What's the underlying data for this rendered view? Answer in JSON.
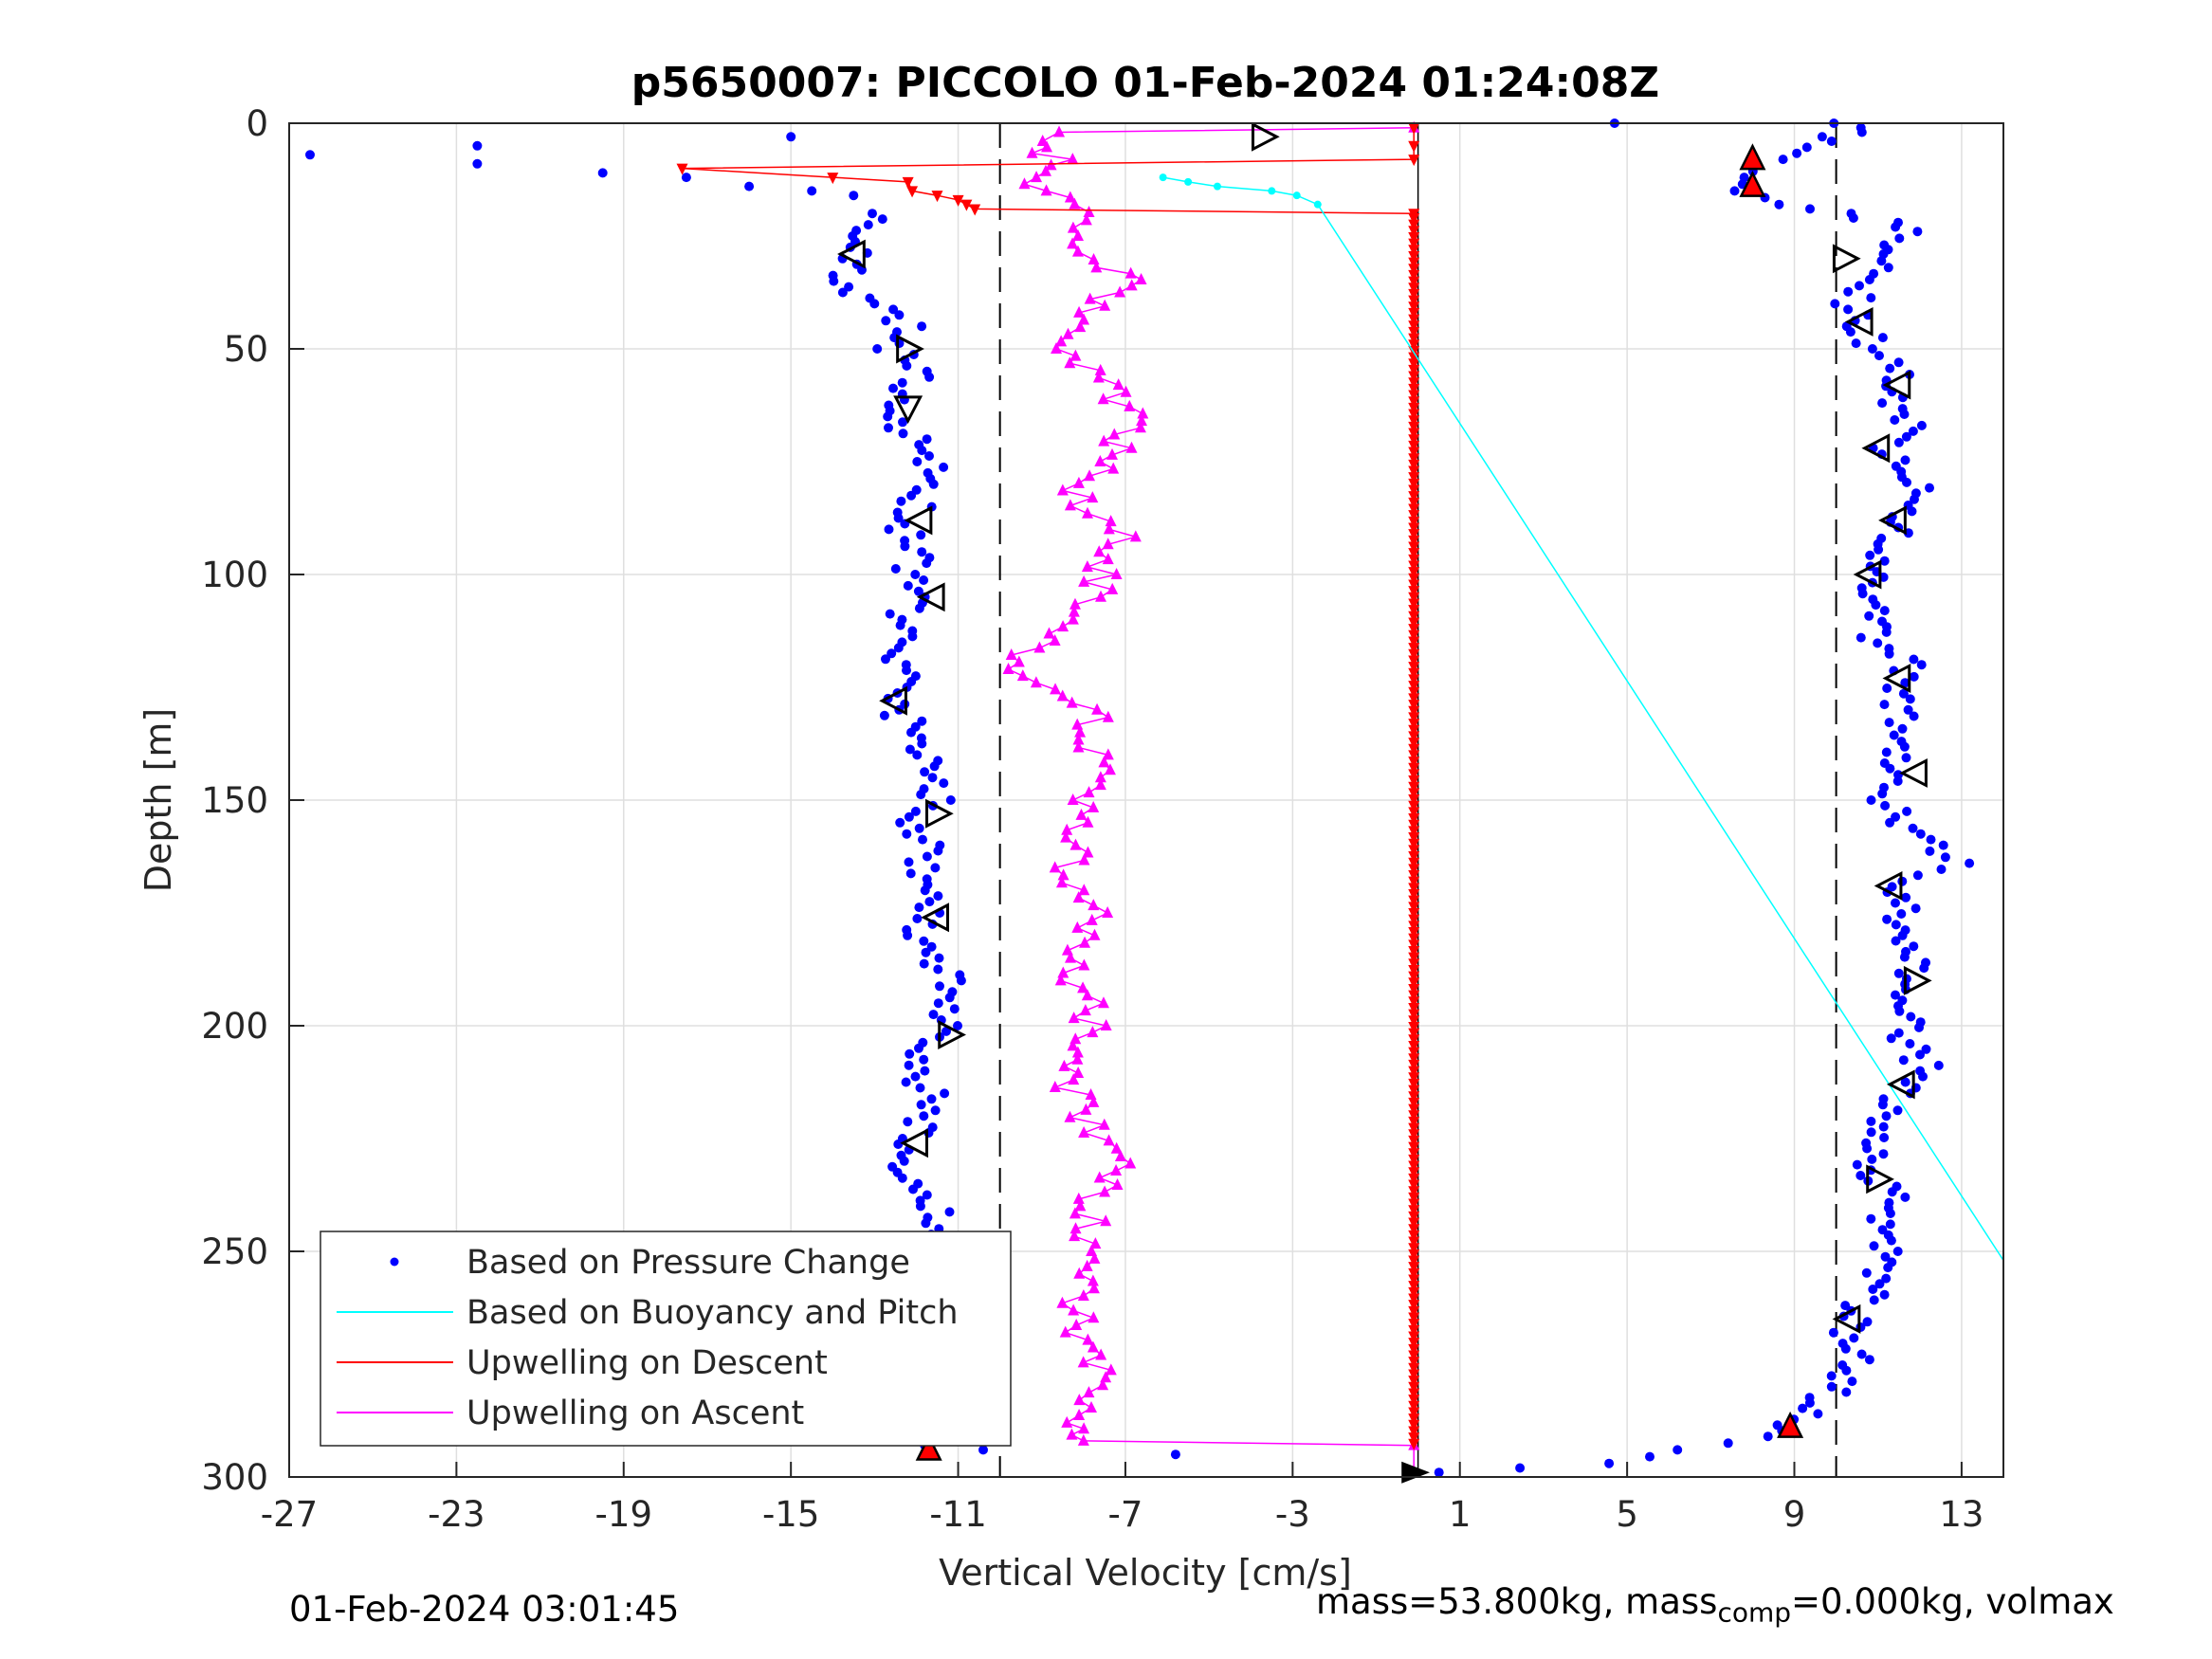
{
  "chart_data": {
    "type": "scatter",
    "title": "p5650007: PICCOLO 01-Feb-2024 01:24:08Z",
    "xlabel": "Vertical Velocity [cm/s]",
    "ylabel": "Depth [m]",
    "xlim": [
      -27,
      14
    ],
    "ylim": [
      0,
      300
    ],
    "y_reversed": true,
    "grid": true,
    "legend_position": "bottom-left",
    "x_ticks": [
      -27,
      -23,
      -19,
      -15,
      -11,
      -7,
      -3,
      1,
      5,
      9,
      13
    ],
    "y_ticks": [
      0,
      50,
      100,
      150,
      200,
      250,
      300
    ],
    "reference_lines": {
      "dashed_x": [
        -10,
        10
      ],
      "solid_x": [
        0
      ]
    },
    "series": [
      {
        "name": "Based on Pressure Change",
        "style": "dots",
        "color": "#0000ff",
        "descent": [
          [
            -12.8,
            20
          ],
          [
            -13.6,
            25
          ],
          [
            -13.4,
            30
          ],
          [
            -13.9,
            35
          ],
          [
            -13.0,
            40
          ],
          [
            -12.2,
            45
          ],
          [
            -12.6,
            50
          ],
          [
            -12.0,
            55
          ],
          [
            -12.3,
            60
          ],
          [
            -12.5,
            65
          ],
          [
            -12.1,
            70
          ],
          [
            -11.7,
            75
          ],
          [
            -11.9,
            80
          ],
          [
            -12.0,
            85
          ],
          [
            -12.4,
            90
          ],
          [
            -11.9,
            95
          ],
          [
            -12.3,
            100
          ],
          [
            -11.8,
            105
          ],
          [
            -12.4,
            110
          ],
          [
            -12.0,
            115
          ],
          [
            -12.5,
            120
          ],
          [
            -12.3,
            125
          ],
          [
            -12.6,
            130
          ],
          [
            -11.9,
            135
          ],
          [
            -11.7,
            140
          ],
          [
            -11.6,
            145
          ],
          [
            -11.5,
            150
          ],
          [
            -12.2,
            155
          ],
          [
            -11.8,
            160
          ],
          [
            -11.9,
            165
          ],
          [
            -11.6,
            170
          ],
          [
            -11.7,
            175
          ],
          [
            -12.2,
            180
          ],
          [
            -11.5,
            185
          ],
          [
            -11.3,
            190
          ],
          [
            -11.4,
            195
          ],
          [
            -11.2,
            200
          ],
          [
            -12.0,
            205
          ],
          [
            -12.1,
            210
          ],
          [
            -11.7,
            215
          ],
          [
            -11.8,
            220
          ],
          [
            -12.1,
            225
          ],
          [
            -12.4,
            230
          ],
          [
            -11.9,
            235
          ],
          [
            -11.6,
            240
          ],
          [
            -11.4,
            245
          ],
          [
            -11.3,
            250
          ],
          [
            -12.3,
            255
          ],
          [
            -12.0,
            260
          ],
          [
            -12.1,
            265
          ],
          [
            -12.0,
            270
          ],
          [
            -11.9,
            275
          ],
          [
            -12.1,
            280
          ],
          [
            -12.0,
            285
          ],
          [
            -11.8,
            290
          ],
          [
            -11.8,
            293
          ]
        ],
        "ascent": [
          [
            10.2,
            0
          ],
          [
            10.6,
            2
          ],
          [
            9.5,
            4
          ],
          [
            8.4,
            8
          ],
          [
            8.0,
            12
          ],
          [
            7.9,
            15
          ],
          [
            8.8,
            18
          ],
          [
            10.2,
            20
          ],
          [
            11.3,
            22
          ],
          [
            11.8,
            24
          ],
          [
            10.8,
            27
          ],
          [
            11.5,
            29
          ],
          [
            10.9,
            32
          ],
          [
            10.7,
            36
          ],
          [
            10.3,
            40
          ],
          [
            10.6,
            45
          ],
          [
            10.9,
            50
          ],
          [
            11.6,
            53
          ],
          [
            11.5,
            57
          ],
          [
            11.3,
            62
          ],
          [
            11.7,
            67
          ],
          [
            11.2,
            72
          ],
          [
            11.4,
            76
          ],
          [
            12.0,
            82
          ],
          [
            11.6,
            86
          ],
          [
            11.3,
            92
          ],
          [
            11.1,
            97
          ],
          [
            10.9,
            103
          ],
          [
            11.2,
            108
          ],
          [
            10.8,
            114
          ],
          [
            11.9,
            120
          ],
          [
            11.3,
            124
          ],
          [
            11.5,
            130
          ],
          [
            11.4,
            137
          ],
          [
            11.3,
            143
          ],
          [
            11.2,
            150
          ],
          [
            11.4,
            155
          ],
          [
            12.3,
            160
          ],
          [
            13.0,
            164
          ],
          [
            11.2,
            168
          ],
          [
            11.6,
            174
          ],
          [
            11.5,
            180
          ],
          [
            11.8,
            186
          ],
          [
            11.7,
            192
          ],
          [
            11.6,
            198
          ],
          [
            11.7,
            204
          ],
          [
            12.2,
            210
          ],
          [
            11.5,
            215
          ],
          [
            11.0,
            220
          ],
          [
            10.8,
            226
          ],
          [
            10.9,
            232
          ],
          [
            11.3,
            238
          ],
          [
            11.0,
            244
          ],
          [
            11.2,
            250
          ],
          [
            11.0,
            256
          ],
          [
            10.6,
            262
          ],
          [
            10.2,
            268
          ],
          [
            10.4,
            274
          ],
          [
            10.0,
            280
          ],
          [
            9.3,
            286
          ],
          [
            8.2,
            291
          ],
          [
            6.5,
            294
          ],
          [
            4.2,
            297
          ],
          [
            2.2,
            298
          ],
          [
            0.5,
            299
          ]
        ],
        "surface_outliers": [
          [
            -26.5,
            7
          ],
          [
            -22.5,
            5
          ],
          [
            -22.5,
            9
          ],
          [
            -19.5,
            11
          ],
          [
            -15.0,
            3
          ],
          [
            4.7,
            0
          ],
          [
            -17.5,
            12
          ],
          [
            -16.0,
            14
          ],
          [
            -13.5,
            16
          ],
          [
            -14.5,
            15
          ],
          [
            -5.8,
            295
          ],
          [
            -10.4,
            294
          ]
        ]
      },
      {
        "name": "Based on Buoyancy and Pitch",
        "style": "line",
        "color": "#00ffff",
        "values": [
          [
            -6.1,
            12
          ],
          [
            -5.5,
            13
          ],
          [
            -4.8,
            14
          ],
          [
            -3.5,
            15
          ],
          [
            -2.9,
            16
          ],
          [
            -2.4,
            18
          ],
          [
            14.0,
            252
          ]
        ]
      },
      {
        "name": "Upwelling on Descent",
        "style": "line",
        "color": "#ff0000",
        "values": [
          [
            -0.1,
            1
          ],
          [
            -0.1,
            5
          ],
          [
            -0.1,
            8
          ],
          [
            -17.6,
            10
          ],
          [
            -14.0,
            12
          ],
          [
            -12.2,
            13
          ],
          [
            -12.1,
            15
          ],
          [
            -11.5,
            16
          ],
          [
            -11.0,
            17
          ],
          [
            -10.8,
            18
          ],
          [
            -10.6,
            19
          ],
          [
            -0.1,
            20
          ],
          [
            -0.1,
            293
          ]
        ]
      },
      {
        "name": "Upwelling on Ascent",
        "style": "line",
        "color": "#ff00ff",
        "values": [
          [
            -0.1,
            1
          ],
          [
            -8.3,
            2
          ],
          [
            -9.0,
            4
          ],
          [
            -8.7,
            8
          ],
          [
            -9.5,
            12
          ],
          [
            -8.0,
            18
          ],
          [
            -8.5,
            25
          ],
          [
            -7.5,
            32
          ],
          [
            -6.8,
            36
          ],
          [
            -8.0,
            42
          ],
          [
            -8.8,
            50
          ],
          [
            -7.3,
            58
          ],
          [
            -6.9,
            66
          ],
          [
            -7.5,
            75
          ],
          [
            -8.2,
            83
          ],
          [
            -7.1,
            90
          ],
          [
            -7.6,
            100
          ],
          [
            -8.0,
            110
          ],
          [
            -10.1,
            121
          ],
          [
            -7.8,
            130
          ],
          [
            -7.7,
            140
          ],
          [
            -8.0,
            150
          ],
          [
            -8.4,
            165
          ],
          [
            -7.6,
            175
          ],
          [
            -8.3,
            185
          ],
          [
            -7.8,
            200
          ],
          [
            -8.4,
            212
          ],
          [
            -7.9,
            222
          ],
          [
            -6.9,
            229
          ],
          [
            -7.9,
            240
          ],
          [
            -7.9,
            255
          ],
          [
            -8.3,
            268
          ],
          [
            -7.3,
            278
          ],
          [
            -8.3,
            288
          ],
          [
            -8.0,
            292
          ],
          [
            -0.1,
            293
          ],
          [
            -0.1,
            299
          ]
        ]
      }
    ],
    "markers": {
      "open_triangles_right": [
        [
          -3.7,
          3
        ],
        [
          -12.2,
          50
        ],
        [
          -11.5,
          153
        ],
        [
          -11.2,
          202
        ],
        [
          -11.3,
          250
        ],
        [
          10.2,
          30
        ],
        [
          11.9,
          190
        ],
        [
          11.0,
          234
        ]
      ],
      "open_triangles_left": [
        [
          -13.5,
          29
        ],
        [
          -11.9,
          88
        ],
        [
          -11.6,
          105
        ],
        [
          -12.5,
          128
        ],
        [
          -11.5,
          176
        ],
        [
          -12.0,
          226
        ],
        [
          -12.2,
          282
        ],
        [
          10.6,
          44
        ],
        [
          11.5,
          58
        ],
        [
          11.0,
          72
        ],
        [
          11.4,
          88
        ],
        [
          10.8,
          100
        ],
        [
          11.5,
          123
        ],
        [
          11.9,
          144
        ],
        [
          11.3,
          169
        ],
        [
          11.6,
          213
        ],
        [
          10.3,
          265
        ]
      ],
      "open_triangles_down": [
        [
          -12.2,
          63
        ]
      ],
      "filled_triangles_up": [
        [
          8.0,
          8
        ],
        [
          8.0,
          14
        ],
        [
          8.9,
          289
        ],
        [
          -11.7,
          294
        ]
      ],
      "bottom_marker": [
        -0.1,
        299
      ]
    }
  },
  "legend": {
    "items": [
      {
        "label": "Based on Pressure Change",
        "color": "#0000ff",
        "style": "dot"
      },
      {
        "label": "Based on Buoyancy and Pitch",
        "color": "#00ffff",
        "style": "line"
      },
      {
        "label": "Upwelling on Descent",
        "color": "#ff0000",
        "style": "line"
      },
      {
        "label": "Upwelling on Ascent",
        "color": "#ff00ff",
        "style": "line"
      }
    ]
  },
  "footer": {
    "timestamp": "01-Feb-2024 03:01:45",
    "mass_prefix": "mass=53.800kg, mass",
    "mass_sub": "comp",
    "mass_suffix": "=0.000kg, volmax"
  }
}
